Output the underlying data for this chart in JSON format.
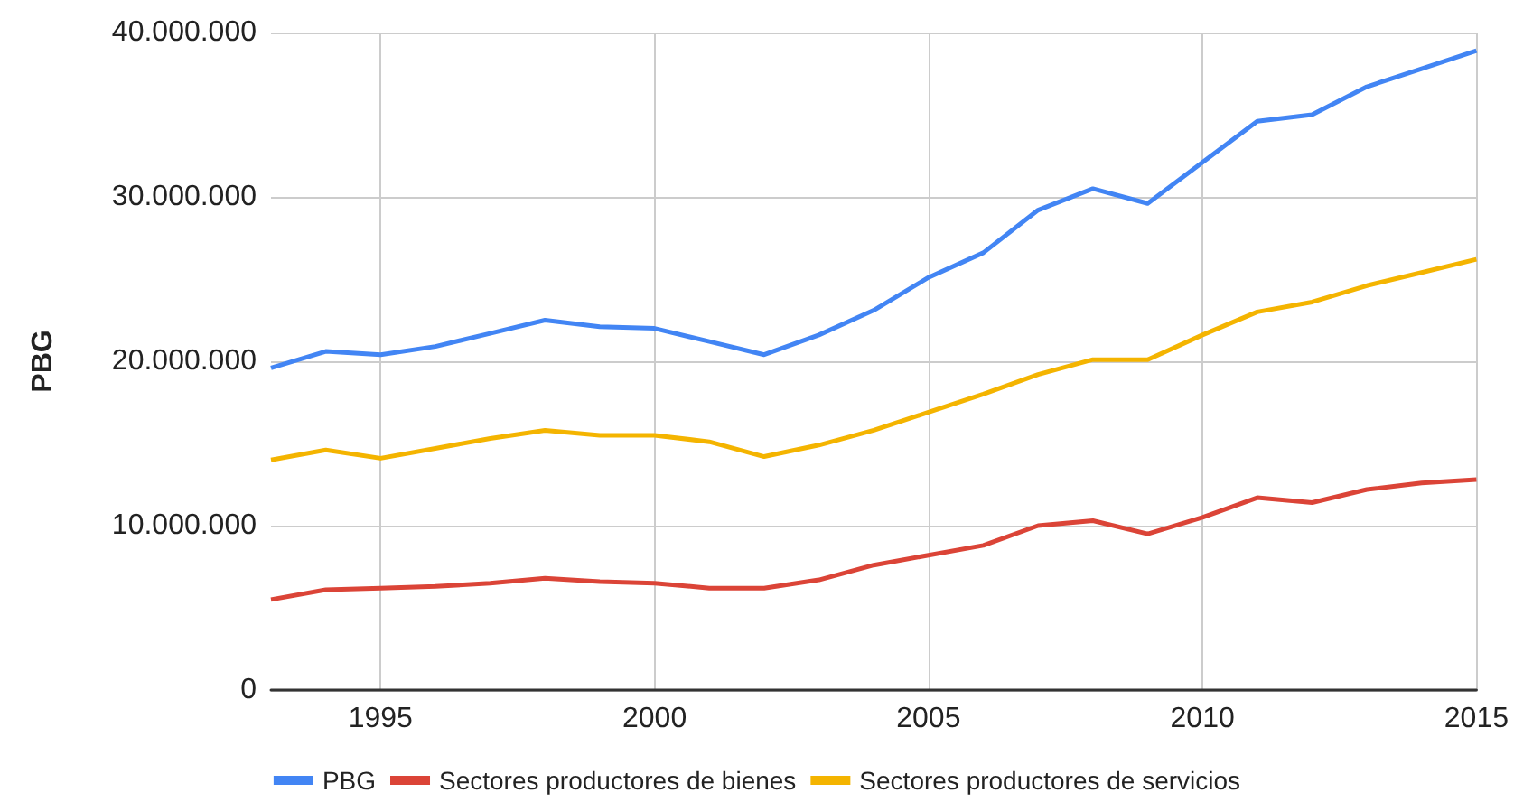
{
  "chart_data": {
    "type": "line",
    "ylabel": "PBG",
    "x": [
      1993,
      1994,
      1995,
      1996,
      1997,
      1998,
      1999,
      2000,
      2001,
      2002,
      2003,
      2004,
      2005,
      2006,
      2007,
      2008,
      2009,
      2010,
      2011,
      2012,
      2013,
      2014,
      2015
    ],
    "series": [
      {
        "name": "PBG",
        "color": "#4285f4",
        "values": [
          19600000,
          20600000,
          20400000,
          20900000,
          21700000,
          22500000,
          22100000,
          22000000,
          21200000,
          20400000,
          21600000,
          23100000,
          25100000,
          26600000,
          29200000,
          30500000,
          29600000,
          32100000,
          34600000,
          35000000,
          36700000,
          37800000,
          38900000
        ]
      },
      {
        "name": "Sectores productores de bienes",
        "color": "#db4437",
        "values": [
          5500000,
          6100000,
          6200000,
          6300000,
          6500000,
          6800000,
          6600000,
          6500000,
          6200000,
          6200000,
          6700000,
          7600000,
          8200000,
          8800000,
          10000000,
          10300000,
          9500000,
          10500000,
          11700000,
          11400000,
          12200000,
          12600000,
          12800000
        ]
      },
      {
        "name": "Sectores productores de servicios",
        "color": "#f4b400",
        "values": [
          14000000,
          14600000,
          14100000,
          14700000,
          15300000,
          15800000,
          15500000,
          15500000,
          15100000,
          14200000,
          14900000,
          15800000,
          16900000,
          18000000,
          19200000,
          20100000,
          20100000,
          21600000,
          23000000,
          23600000,
          24600000,
          25400000,
          26200000
        ]
      }
    ],
    "xlim": [
      1993,
      2015
    ],
    "xticks": [
      1995,
      2000,
      2005,
      2010,
      2015
    ],
    "ylim": [
      0,
      40000000
    ],
    "yticks": [
      {
        "value": 0,
        "label": "0"
      },
      {
        "value": 10000000,
        "label": "10.000.000"
      },
      {
        "value": 20000000,
        "label": "20.000.000"
      },
      {
        "value": 30000000,
        "label": "30.000.000"
      },
      {
        "value": 40000000,
        "label": "40.000.000"
      }
    ],
    "grid": true,
    "legend": "bottom",
    "marker": "none",
    "line_style": "solid"
  }
}
